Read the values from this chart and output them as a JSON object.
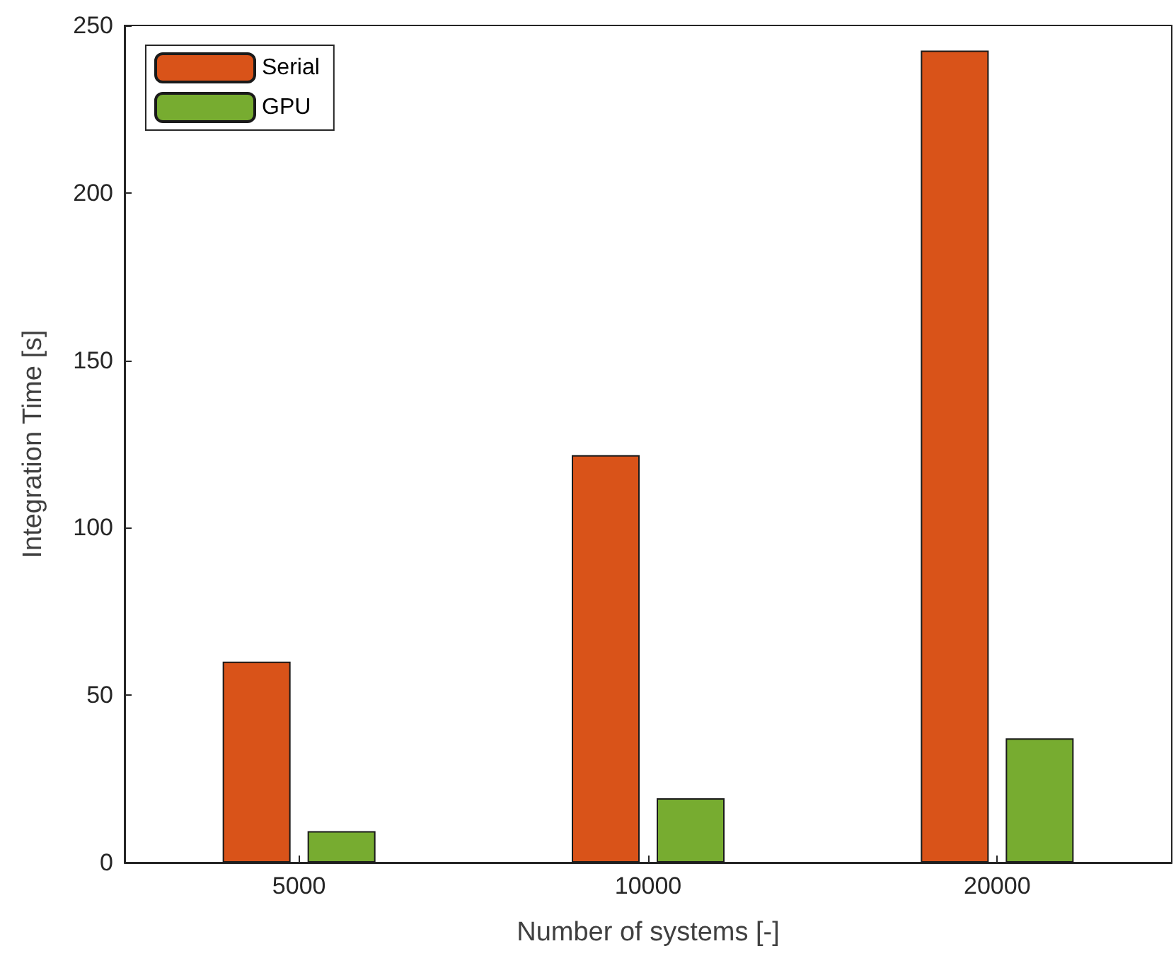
{
  "chart_data": {
    "type": "bar",
    "xlabel": "Number of systems [-]",
    "ylabel": "Integration Time [s]",
    "categories": [
      "5000",
      "10000",
      "20000"
    ],
    "series": [
      {
        "name": "Serial",
        "color": "#d95319",
        "values": [
          60,
          121.7,
          242.5
        ]
      },
      {
        "name": "GPU",
        "color": "#77ac30",
        "values": [
          9.4,
          19.2,
          37.1
        ]
      }
    ],
    "ylim": [
      0,
      250
    ],
    "yticks": [
      0,
      50,
      100,
      150,
      200,
      250
    ],
    "grid": false,
    "legend": "top left"
  }
}
